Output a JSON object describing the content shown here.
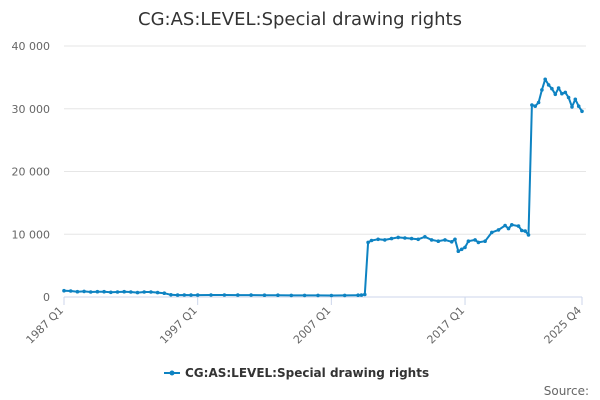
{
  "chart_data": {
    "type": "line",
    "title": "CG:AS:LEVEL:Special drawing rights",
    "xlabel": "",
    "ylabel": "",
    "x_tick_labels": [
      "1987 Q1",
      "1997 Q1",
      "2007 Q1",
      "2017 Q1",
      "2025 Q4"
    ],
    "ylim": [
      0,
      40000
    ],
    "y_ticks": [
      0,
      10000,
      20000,
      30000,
      40000
    ],
    "y_tick_labels": [
      "0",
      "10 000",
      "20 000",
      "30 000",
      "40 000"
    ],
    "grid": true,
    "legend_position": "bottom",
    "series_color": "#0e83c2",
    "series": [
      {
        "name": "CG:AS:LEVEL:Special drawing rights",
        "points": [
          [
            "1987 Q1",
            1000
          ],
          [
            "1987 Q3",
            950
          ],
          [
            "1988 Q1",
            850
          ],
          [
            "1988 Q3",
            900
          ],
          [
            "1989 Q1",
            800
          ],
          [
            "1989 Q3",
            850
          ],
          [
            "1990 Q1",
            850
          ],
          [
            "1990 Q3",
            750
          ],
          [
            "1991 Q1",
            800
          ],
          [
            "1991 Q3",
            850
          ],
          [
            "1992 Q1",
            800
          ],
          [
            "1992 Q3",
            700
          ],
          [
            "1993 Q1",
            800
          ],
          [
            "1993 Q3",
            800
          ],
          [
            "1994 Q1",
            700
          ],
          [
            "1994 Q3",
            600
          ],
          [
            "1995 Q1",
            350
          ],
          [
            "1995 Q3",
            300
          ],
          [
            "1996 Q1",
            320
          ],
          [
            "1996 Q3",
            300
          ],
          [
            "1997 Q1",
            300
          ],
          [
            "1998 Q1",
            320
          ],
          [
            "1999 Q1",
            320
          ],
          [
            "2000 Q1",
            310
          ],
          [
            "2001 Q1",
            300
          ],
          [
            "2002 Q1",
            280
          ],
          [
            "2003 Q1",
            280
          ],
          [
            "2004 Q1",
            260
          ],
          [
            "2005 Q1",
            250
          ],
          [
            "2006 Q1",
            250
          ],
          [
            "2007 Q1",
            240
          ],
          [
            "2008 Q1",
            250
          ],
          [
            "2009 Q1",
            280
          ],
          [
            "2009 Q2",
            300
          ],
          [
            "2009 Q3",
            400
          ],
          [
            "2009 Q4",
            8700
          ],
          [
            "2010 Q1",
            9000
          ],
          [
            "2010 Q3",
            9200
          ],
          [
            "2011 Q1",
            9100
          ],
          [
            "2011 Q3",
            9300
          ],
          [
            "2012 Q1",
            9500
          ],
          [
            "2012 Q3",
            9400
          ],
          [
            "2013 Q1",
            9300
          ],
          [
            "2013 Q3",
            9200
          ],
          [
            "2014 Q1",
            9600
          ],
          [
            "2014 Q3",
            9100
          ],
          [
            "2015 Q1",
            8900
          ],
          [
            "2015 Q3",
            9100
          ],
          [
            "2016 Q1",
            8800
          ],
          [
            "2016 Q2",
            9200
          ],
          [
            "2016 Q3",
            7300
          ],
          [
            "2016 Q4",
            7600
          ],
          [
            "2017 Q1",
            7900
          ],
          [
            "2017 Q2",
            8900
          ],
          [
            "2017 Q4",
            9100
          ],
          [
            "2018 Q1",
            8700
          ],
          [
            "2018 Q3",
            8900
          ],
          [
            "2019 Q1",
            10300
          ],
          [
            "2019 Q3",
            10700
          ],
          [
            "2020 Q1",
            11400
          ],
          [
            "2020 Q2",
            10900
          ],
          [
            "2020 Q3",
            11500
          ],
          [
            "2021 Q1",
            11300
          ],
          [
            "2021 Q2",
            10600
          ],
          [
            "2021 Q3",
            10500
          ],
          [
            "2021 Q4",
            9900
          ],
          [
            "2022 Q1",
            30600
          ],
          [
            "2022 Q2",
            30400
          ],
          [
            "2022 Q3",
            31000
          ],
          [
            "2022 Q4",
            33000
          ],
          [
            "2023 Q1",
            34700
          ],
          [
            "2023 Q2",
            33800
          ],
          [
            "2023 Q3",
            33200
          ],
          [
            "2023 Q4",
            32300
          ],
          [
            "2024 Q1",
            33300
          ],
          [
            "2024 Q2",
            32400
          ],
          [
            "2024 Q3",
            32600
          ],
          [
            "2024 Q4",
            31800
          ],
          [
            "2025 Q1",
            30300
          ],
          [
            "2025 Q2",
            31500
          ],
          [
            "2025 Q3",
            30400
          ],
          [
            "2025 Q4",
            29600
          ]
        ]
      }
    ]
  },
  "credits": "Source:"
}
